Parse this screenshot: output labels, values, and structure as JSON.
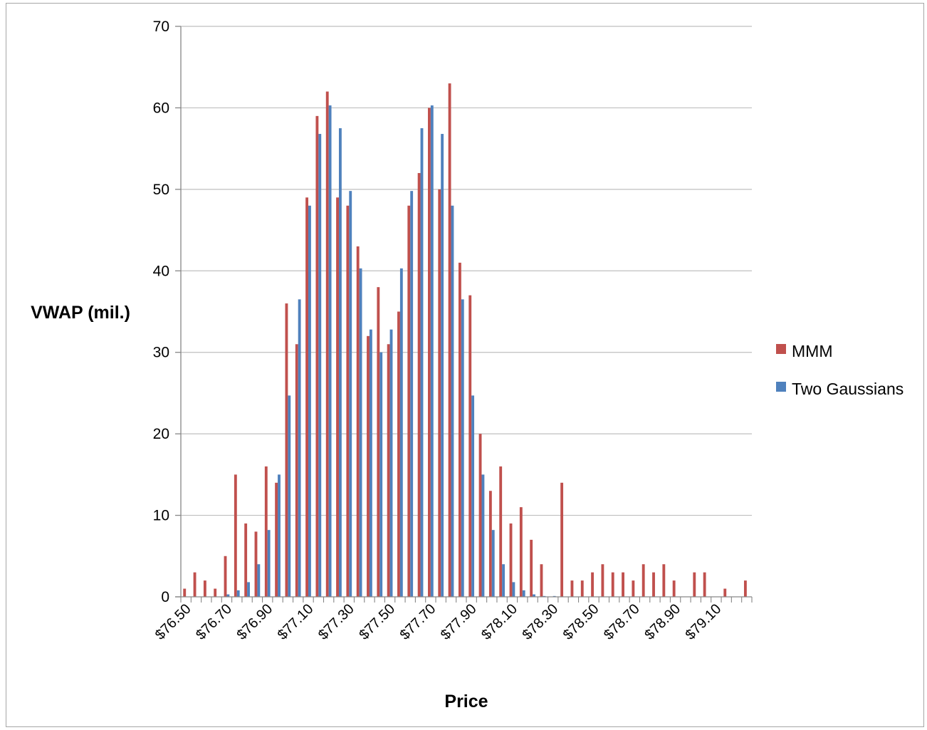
{
  "chart_data": {
    "type": "bar",
    "title": "",
    "xlabel": "Price",
    "ylabel": "VWAP (mil.)",
    "ylim": [
      0,
      70
    ],
    "yticks": [
      0,
      10,
      20,
      30,
      40,
      50,
      60,
      70
    ],
    "grid": "horizontal",
    "legend_position": "right",
    "x_start": 76.5,
    "x_step": 0.05,
    "tick_labels": [
      "$76.50",
      "$76.70",
      "$76.90",
      "$77.10",
      "$77.30",
      "$77.50",
      "$77.70",
      "$77.90",
      "$78.10",
      "$78.30",
      "$78.50",
      "$78.70",
      "$78.90",
      "$79.10"
    ],
    "tick_every": 4,
    "series": [
      {
        "name": "MMM",
        "color": "#c0504d",
        "values": [
          1,
          3,
          2,
          1,
          5,
          15,
          9,
          8,
          16,
          14,
          36,
          31,
          49,
          59,
          62,
          49,
          48,
          43,
          32,
          38,
          31,
          35,
          48,
          52,
          60,
          50,
          63,
          41,
          37,
          20,
          13,
          16,
          9,
          11,
          7,
          4,
          0,
          14,
          2,
          2,
          3,
          4,
          3,
          3,
          2,
          4,
          3,
          4,
          2,
          0,
          3,
          3,
          0,
          1,
          0,
          2
        ]
      },
      {
        "name": "Two Gaussians",
        "color": "#4f81bd",
        "values": [
          0,
          0,
          0,
          0,
          0.3,
          0.8,
          1.8,
          4,
          8.2,
          15,
          24.7,
          36.5,
          48,
          56.8,
          60.3,
          57.5,
          49.8,
          40.3,
          32.8,
          30,
          32.8,
          40.3,
          49.8,
          57.5,
          60.3,
          56.8,
          48,
          36.5,
          24.7,
          15,
          8.2,
          4,
          1.8,
          0.8,
          0.3,
          0.1,
          0.1,
          0,
          0,
          0,
          0,
          0,
          0,
          0,
          0,
          0,
          0,
          0,
          0,
          0,
          0,
          0,
          0,
          0,
          0,
          0
        ]
      }
    ]
  }
}
